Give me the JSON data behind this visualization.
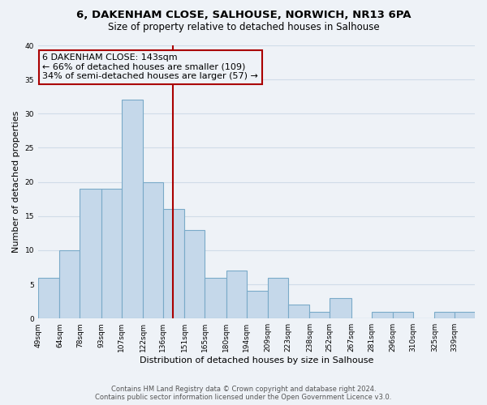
{
  "title1": "6, DAKENHAM CLOSE, SALHOUSE, NORWICH, NR13 6PA",
  "title2": "Size of property relative to detached houses in Salhouse",
  "xlabel": "Distribution of detached houses by size in Salhouse",
  "ylabel": "Number of detached properties",
  "bar_labels": [
    "49sqm",
    "64sqm",
    "78sqm",
    "93sqm",
    "107sqm",
    "122sqm",
    "136sqm",
    "151sqm",
    "165sqm",
    "180sqm",
    "194sqm",
    "209sqm",
    "223sqm",
    "238sqm",
    "252sqm",
    "267sqm",
    "281sqm",
    "296sqm",
    "310sqm",
    "325sqm",
    "339sqm"
  ],
  "bar_values": [
    6,
    10,
    19,
    19,
    32,
    20,
    16,
    13,
    6,
    7,
    4,
    6,
    2,
    1,
    3,
    0,
    1,
    1,
    0,
    1,
    1
  ],
  "property_label": "6 DAKENHAM CLOSE: 143sqm",
  "pct_smaller": 66,
  "count_smaller": 109,
  "pct_larger": 34,
  "count_larger": 57,
  "bar_color": "#c5d8ea",
  "bar_edge_color": "#7aaac8",
  "vline_color": "#aa0000",
  "annotation_box_edge": "#aa0000",
  "bg_color": "#eef2f7",
  "footer1": "Contains HM Land Registry data © Crown copyright and database right 2024.",
  "footer2": "Contains public sector information licensed under the Open Government Licence v3.0.",
  "bin_edges": [
    49,
    64,
    78,
    93,
    107,
    122,
    136,
    151,
    165,
    180,
    194,
    209,
    223,
    238,
    252,
    267,
    281,
    296,
    310,
    325,
    339,
    353
  ],
  "vline_x": 143,
  "ylim": [
    0,
    40
  ],
  "yticks": [
    0,
    5,
    10,
    15,
    20,
    25,
    30,
    35,
    40
  ],
  "grid_color": "#d0dce8",
  "title1_fontsize": 9.5,
  "title2_fontsize": 8.5,
  "axis_fontsize": 8,
  "tick_fontsize": 6.5,
  "ann_fontsize": 8,
  "footer_fontsize": 6
}
